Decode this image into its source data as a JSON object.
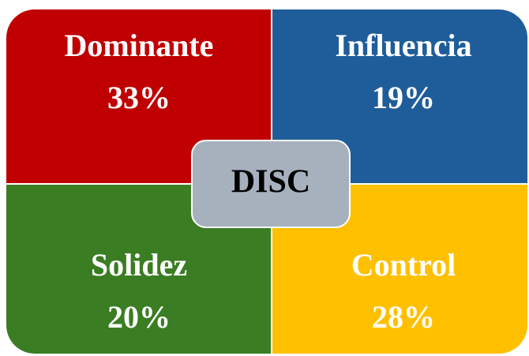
{
  "center": {
    "label": "DISC"
  },
  "quadrants": [
    {
      "label": "Dominante",
      "value": "33%",
      "color": "#c00000"
    },
    {
      "label": "Influencia",
      "value": "19%",
      "color": "#1f5d9a"
    },
    {
      "label": "Solidez",
      "value": "20%",
      "color": "#3a7d22"
    },
    {
      "label": "Control",
      "value": "28%",
      "color": "#ffc000"
    }
  ]
}
